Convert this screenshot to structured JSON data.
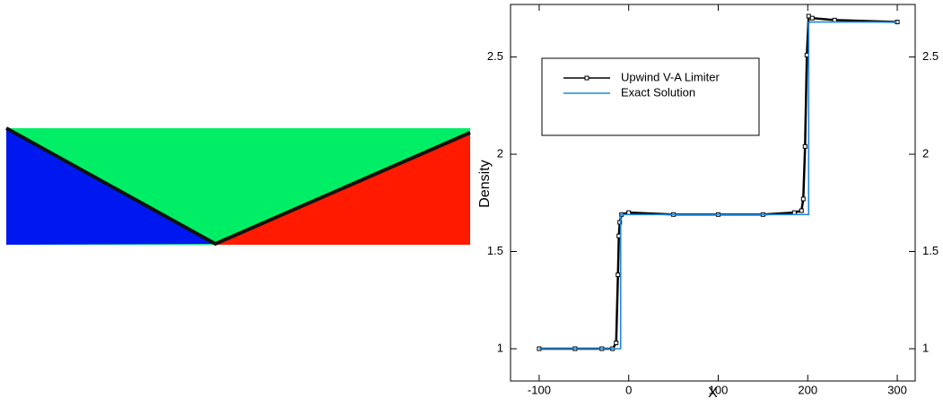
{
  "chart_data": {
    "type": "line",
    "xlabel": "X",
    "ylabel": "Density",
    "xlim": [
      -132,
      320
    ],
    "ylim": [
      0.834,
      2.77
    ],
    "xticks": [
      -100,
      0,
      100,
      200,
      300
    ],
    "yticks": [
      1,
      1.5,
      2,
      2.5
    ],
    "legend": "upper-left",
    "series": [
      {
        "name": "Upwind V-A Limiter",
        "color": "#000000",
        "marker": "square",
        "x": [
          -100,
          -60,
          -30,
          -18,
          -14,
          -12,
          -11,
          -10,
          -8,
          0,
          50,
          100,
          150,
          185,
          193,
          195,
          197,
          199,
          201,
          205,
          230,
          300
        ],
        "values": [
          1.0,
          1.0,
          1.0,
          1.0,
          1.03,
          1.38,
          1.58,
          1.65,
          1.69,
          1.7,
          1.69,
          1.69,
          1.69,
          1.7,
          1.71,
          1.77,
          2.04,
          2.51,
          2.71,
          2.7,
          2.69,
          2.68
        ]
      },
      {
        "name": "Exact Solution",
        "color": "#1f88d8",
        "x": [
          -100,
          -9,
          -9,
          201,
          201,
          300
        ],
        "values": [
          1,
          1,
          1.69,
          1.69,
          2.68,
          2.68
        ]
      }
    ]
  }
}
